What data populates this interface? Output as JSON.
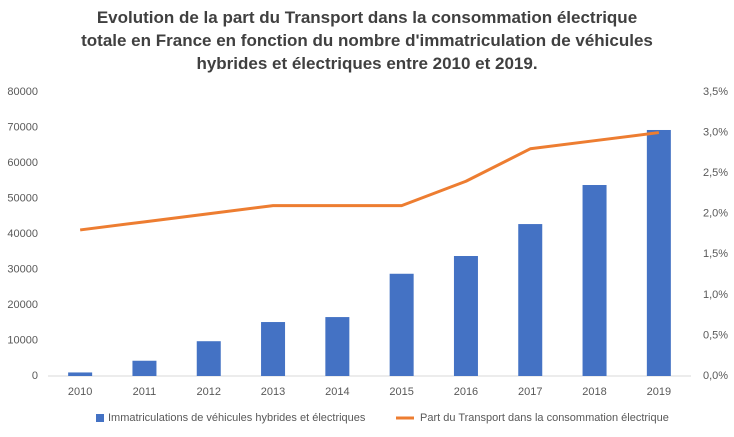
{
  "chart_data": {
    "type": "bar-line",
    "title": "Evolution de la part du Transport dans la consommation électrique totale en France en fonction du nombre d'immatriculation de véhicules hybrides et électriques entre 2010 et 2019.",
    "categories": [
      "2010",
      "2011",
      "2012",
      "2013",
      "2014",
      "2015",
      "2016",
      "2017",
      "2018",
      "2019"
    ],
    "series": [
      {
        "name": "Immatriculations de véhicules hybrides et électriques",
        "type": "bar",
        "color": "#4472c4",
        "values": [
          1000,
          4300,
          9800,
          15200,
          16600,
          28800,
          33800,
          42800,
          53800,
          69300
        ]
      },
      {
        "name": "Part du Transport dans la consommation électrique",
        "type": "line",
        "axis": "y2",
        "color": "#ed7d31",
        "values": [
          1.8,
          1.9,
          2.0,
          2.1,
          2.1,
          2.1,
          2.4,
          2.8,
          2.9,
          3.0
        ]
      }
    ],
    "ylim": [
      0,
      80000
    ],
    "yticks": [
      0,
      10000,
      20000,
      30000,
      40000,
      50000,
      60000,
      70000,
      80000
    ],
    "y2lim": [
      0,
      3.5
    ],
    "y2ticks": [
      {
        "value": 0,
        "label": "0,0%"
      },
      {
        "value": 0.5,
        "label": "0,5%"
      },
      {
        "value": 1,
        "label": "1,0%"
      },
      {
        "value": 1.5,
        "label": "1,5%"
      },
      {
        "value": 2,
        "label": "2,0%"
      },
      {
        "value": 2.5,
        "label": "2,5%"
      },
      {
        "value": 3,
        "label": "3,0%"
      },
      {
        "value": 3.5,
        "label": "3,5%"
      }
    ],
    "grid": false,
    "legend": "bottom"
  }
}
